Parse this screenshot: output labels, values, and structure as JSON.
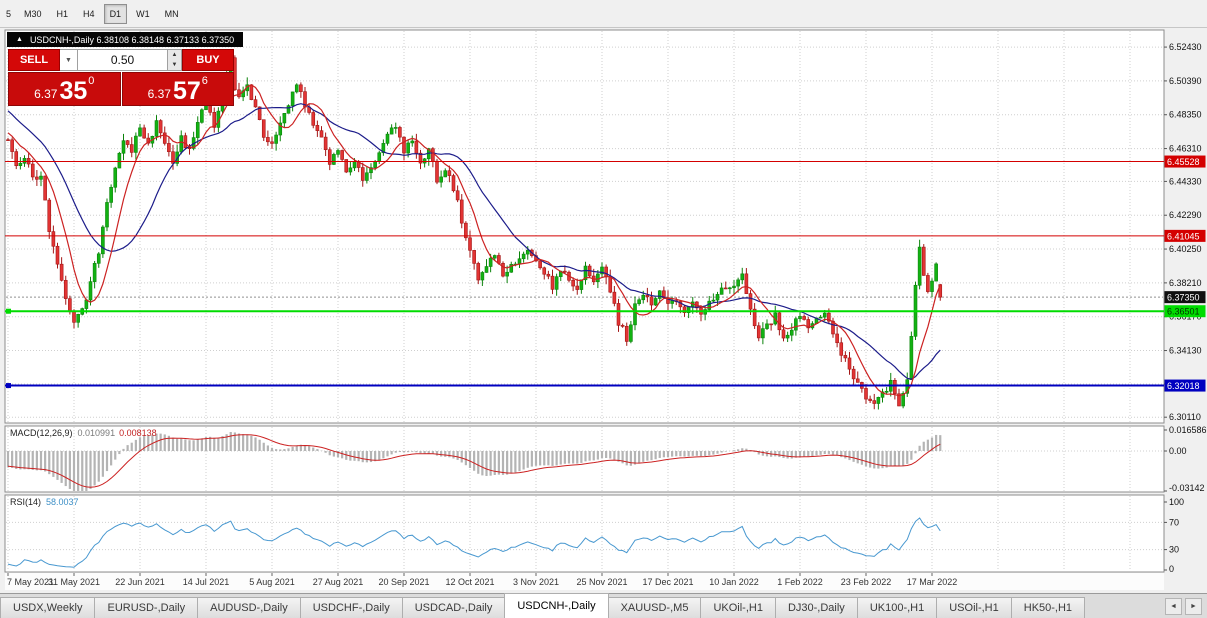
{
  "toolbar": {
    "timeframes": [
      "5",
      "M30",
      "H1",
      "H4",
      "D1",
      "W1",
      "MN"
    ],
    "active": "D1"
  },
  "chart": {
    "collapse_icon": "▲",
    "title": "USDCNH-,Daily",
    "ohlc": "6.38108 6.38148 6.37133 6.37350"
  },
  "trade": {
    "sell_label": "SELL",
    "buy_label": "BUY",
    "volume": "0.50",
    "dropdown_icon": "▼",
    "spin_up": "▲",
    "spin_down": "▼",
    "sell_price": {
      "base": "6.37",
      "big": "35",
      "sup": "0"
    },
    "buy_price": {
      "base": "6.37",
      "big": "57",
      "sup": "6"
    }
  },
  "price_axis": {
    "ticks": [
      "6.52430",
      "6.50390",
      "6.48350",
      "6.46310",
      "6.44330",
      "6.42290",
      "6.40250",
      "6.38210",
      "6.36170",
      "6.34130",
      "6.32110",
      "6.30110"
    ]
  },
  "levels": [
    {
      "price": 6.45528,
      "label": "6.45528",
      "color": "#d40000",
      "text_color": "#ffffff",
      "width": 1,
      "handles": false
    },
    {
      "price": 6.41045,
      "label": "6.41045",
      "color": "#d40000",
      "text_color": "#ffffff",
      "width": 1,
      "handles": false
    },
    {
      "price": 6.36501,
      "label": "6.36501",
      "color": "#00dc00",
      "text_color": "#003300",
      "width": 2,
      "handles": true
    },
    {
      "price": 6.32018,
      "label": "6.32018",
      "color": "#0000c0",
      "text_color": "#ffffff",
      "width": 2,
      "handles": true
    }
  ],
  "bid": {
    "price": 6.3735,
    "label": "6.37350",
    "badge_color": "#101010",
    "text_color": "#ffffff"
  },
  "macd": {
    "name": "MACD(12,26,9)",
    "value_main": "0.010991",
    "value_signal": "0.008138",
    "axis": [
      "0.016586",
      "0.00",
      "-0.03142"
    ]
  },
  "rsi": {
    "name": "RSI(14)",
    "value": "58.0037",
    "axis": [
      "100",
      "70",
      "30",
      "0"
    ],
    "levels": [
      70,
      30
    ]
  },
  "x_axis": {
    "labels": [
      "7 May 2021",
      "31 May 2021",
      "22 Jun 2021",
      "14 Jul 2021",
      "5 Aug 2021",
      "27 Aug 2021",
      "20 Sep 2021",
      "12 Oct 2021",
      "3 Nov 2021",
      "25 Nov 2021",
      "17 Dec 2021",
      "10 Jan 2022",
      "1 Feb 2022",
      "23 Feb 2022",
      "17 Mar 2022"
    ]
  },
  "tabs": {
    "items": [
      "USDX,Weekly",
      "EURUSD-,Daily",
      "AUDUSD-,Daily",
      "USDCHF-,Daily",
      "USDCAD-,Daily",
      "USDCNH-,Daily",
      "XAUUSD-,M5",
      "UKOil-,H1",
      "DJ30-,Daily",
      "UK100-,H1",
      "USOil-,H1",
      "HK50-,H1"
    ],
    "active": "USDCNH-,Daily",
    "scroll_left": "◄",
    "scroll_right": "►"
  },
  "chart_data": {
    "type": "candlestick",
    "symbol": "USDCNH-",
    "timeframe": "Daily",
    "title": "USDCNH-,Daily",
    "last_ohlc": {
      "open": 6.38108,
      "high": 6.38148,
      "low": 6.37133,
      "close": 6.3735
    },
    "y_range": [
      6.2976,
      6.5346
    ],
    "bars_visible": 227,
    "x_tick_every_bars": 16,
    "price_path": [
      [
        0,
        6.468
      ],
      [
        2,
        6.452
      ],
      [
        4,
        6.458
      ],
      [
        6,
        6.445
      ],
      [
        8,
        6.448
      ],
      [
        10,
        6.415
      ],
      [
        12,
        6.392
      ],
      [
        14,
        6.373
      ],
      [
        16,
        6.358
      ],
      [
        18,
        6.366
      ],
      [
        20,
        6.382
      ],
      [
        22,
        6.402
      ],
      [
        24,
        6.432
      ],
      [
        26,
        6.45
      ],
      [
        28,
        6.468
      ],
      [
        30,
        6.462
      ],
      [
        32,
        6.478
      ],
      [
        34,
        6.465
      ],
      [
        36,
        6.48
      ],
      [
        38,
        6.468
      ],
      [
        40,
        6.455
      ],
      [
        42,
        6.47
      ],
      [
        44,
        6.462
      ],
      [
        46,
        6.478
      ],
      [
        48,
        6.49
      ],
      [
        50,
        6.478
      ],
      [
        52,
        6.498
      ],
      [
        54,
        6.518
      ],
      [
        55,
        6.5
      ],
      [
        56,
        6.492
      ],
      [
        58,
        6.503
      ],
      [
        60,
        6.487
      ],
      [
        62,
        6.472
      ],
      [
        64,
        6.465
      ],
      [
        66,
        6.478
      ],
      [
        68,
        6.49
      ],
      [
        70,
        6.502
      ],
      [
        72,
        6.49
      ],
      [
        74,
        6.478
      ],
      [
        76,
        6.468
      ],
      [
        78,
        6.455
      ],
      [
        80,
        6.462
      ],
      [
        82,
        6.45
      ],
      [
        84,
        6.456
      ],
      [
        86,
        6.444
      ],
      [
        88,
        6.452
      ],
      [
        90,
        6.46
      ],
      [
        92,
        6.472
      ],
      [
        94,
        6.476
      ],
      [
        96,
        6.462
      ],
      [
        98,
        6.47
      ],
      [
        100,
        6.455
      ],
      [
        102,
        6.462
      ],
      [
        104,
        6.445
      ],
      [
        106,
        6.452
      ],
      [
        108,
        6.44
      ],
      [
        110,
        6.42
      ],
      [
        112,
        6.4
      ],
      [
        114,
        6.385
      ],
      [
        116,
        6.392
      ],
      [
        118,
        6.4
      ],
      [
        120,
        6.386
      ],
      [
        122,
        6.392
      ],
      [
        124,
        6.398
      ],
      [
        126,
        6.402
      ],
      [
        128,
        6.396
      ],
      [
        130,
        6.388
      ],
      [
        132,
        6.38
      ],
      [
        134,
        6.39
      ],
      [
        136,
        6.384
      ],
      [
        138,
        6.379
      ],
      [
        140,
        6.39
      ],
      [
        142,
        6.384
      ],
      [
        144,
        6.392
      ],
      [
        146,
        6.378
      ],
      [
        148,
        6.358
      ],
      [
        150,
        6.349
      ],
      [
        152,
        6.368
      ],
      [
        154,
        6.376
      ],
      [
        156,
        6.369
      ],
      [
        158,
        6.376
      ],
      [
        160,
        6.37
      ],
      [
        162,
        6.373
      ],
      [
        164,
        6.364
      ],
      [
        166,
        6.371
      ],
      [
        168,
        6.364
      ],
      [
        170,
        6.371
      ],
      [
        172,
        6.376
      ],
      [
        174,
        6.381
      ],
      [
        176,
        6.381
      ],
      [
        178,
        6.39
      ],
      [
        180,
        6.366
      ],
      [
        182,
        6.35
      ],
      [
        184,
        6.356
      ],
      [
        186,
        6.362
      ],
      [
        188,
        6.35
      ],
      [
        190,
        6.356
      ],
      [
        192,
        6.362
      ],
      [
        194,
        6.354
      ],
      [
        196,
        6.36
      ],
      [
        198,
        6.366
      ],
      [
        200,
        6.35
      ],
      [
        202,
        6.34
      ],
      [
        204,
        6.33
      ],
      [
        206,
        6.32
      ],
      [
        208,
        6.314
      ],
      [
        210,
        6.307
      ],
      [
        212,
        6.316
      ],
      [
        214,
        6.321
      ],
      [
        216,
        6.309
      ],
      [
        218,
        6.322
      ],
      [
        219,
        6.35
      ],
      [
        220,
        6.381
      ],
      [
        221,
        6.405
      ],
      [
        222,
        6.386
      ],
      [
        223,
        6.376
      ],
      [
        224,
        6.381
      ],
      [
        225,
        6.392
      ],
      [
        226,
        6.3735
      ]
    ],
    "context_path": [
      [
        -26,
        6.53
      ],
      [
        -18,
        6.505
      ],
      [
        -10,
        6.488
      ],
      [
        -4,
        6.472
      ]
    ],
    "horizontal_levels": [
      6.45528,
      6.41045,
      6.36501,
      6.32018
    ],
    "moving_averages": [
      {
        "name": "fast",
        "color": "#cc2222",
        "period": 8
      },
      {
        "name": "slow",
        "color": "#1c1c8a",
        "period": 20
      }
    ],
    "macd": {
      "fast": 12,
      "slow": 26,
      "signal": 9,
      "current_main": 0.010991,
      "current_signal": 0.008138,
      "hist_color": "#b4b4b4",
      "signal_color": "#cc2222",
      "scale_max": 0.016586,
      "scale_min": -0.03142
    },
    "rsi": {
      "period": 14,
      "current": 58.0037,
      "color": "#4898d0"
    },
    "colors": {
      "up": "#12b212",
      "up_stroke": "#0b830b",
      "down": "#e23434",
      "down_stroke": "#a31616",
      "grid": "#cfcfcf"
    }
  }
}
